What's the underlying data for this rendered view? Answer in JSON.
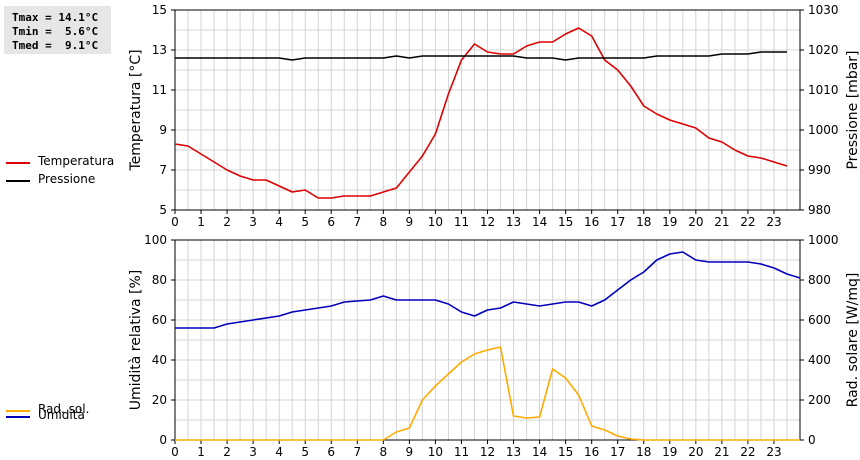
{
  "stats": {
    "tmax": "Tmax = 14.1°C",
    "tmin": "Tmin =  5.6°C",
    "tmed": "Tmed =  9.1°C"
  },
  "legend_top": [
    {
      "label": "Temperatura",
      "color": "#dd0000"
    },
    {
      "label": "Pressione",
      "color": "#000000"
    }
  ],
  "legend_bottom": [
    {
      "label": "Umidità",
      "color": "#0000bb"
    },
    {
      "label": "Rad. sol.",
      "color": "#ffaa00"
    }
  ],
  "chart_data": [
    {
      "type": "line",
      "ylabel": "Temperatura [°C]",
      "y2label": "Pressione [mbar]",
      "xlim": [
        0,
        24
      ],
      "x_ticks": [
        "0",
        "1",
        "2",
        "3",
        "4",
        "5",
        "6",
        "7",
        "8",
        "9",
        "10",
        "11",
        "12",
        "13",
        "14",
        "15",
        "16",
        "17",
        "18",
        "19",
        "20",
        "21",
        "22",
        "23"
      ],
      "ylim": [
        5,
        15
      ],
      "y_ticks": [
        "5",
        "7",
        "9",
        "11",
        "13",
        "15"
      ],
      "y2lim": [
        980,
        1030
      ],
      "y2_ticks": [
        "980",
        "990",
        "1000",
        "1010",
        "1020",
        "1030"
      ],
      "grid": true,
      "series": [
        {
          "name": "Temperatura",
          "axis": "left",
          "color": "#dd0000",
          "points": [
            [
              0,
              8.3
            ],
            [
              0.5,
              8.2
            ],
            [
              1,
              7.8
            ],
            [
              1.5,
              7.4
            ],
            [
              2,
              7.0
            ],
            [
              2.5,
              6.7
            ],
            [
              3,
              6.5
            ],
            [
              3.5,
              6.5
            ],
            [
              4,
              6.2
            ],
            [
              4.5,
              5.9
            ],
            [
              5,
              6.0
            ],
            [
              5.5,
              5.6
            ],
            [
              6,
              5.6
            ],
            [
              6.5,
              5.7
            ],
            [
              7,
              5.7
            ],
            [
              7.5,
              5.7
            ],
            [
              8,
              5.9
            ],
            [
              8.5,
              6.1
            ],
            [
              9,
              6.9
            ],
            [
              9.5,
              7.7
            ],
            [
              10,
              8.8
            ],
            [
              10.5,
              10.8
            ],
            [
              11,
              12.5
            ],
            [
              11.5,
              13.3
            ],
            [
              12,
              12.9
            ],
            [
              12.5,
              12.8
            ],
            [
              13,
              12.8
            ],
            [
              13.5,
              13.2
            ],
            [
              14,
              13.4
            ],
            [
              14.5,
              13.4
            ],
            [
              15,
              13.8
            ],
            [
              15.5,
              14.1
            ],
            [
              16,
              13.7
            ],
            [
              16.5,
              12.5
            ],
            [
              17,
              12.0
            ],
            [
              17.5,
              11.2
            ],
            [
              18,
              10.2
            ],
            [
              18.5,
              9.8
            ],
            [
              19,
              9.5
            ],
            [
              19.5,
              9.3
            ],
            [
              20,
              9.1
            ],
            [
              20.5,
              8.6
            ],
            [
              21,
              8.4
            ],
            [
              21.5,
              8.0
            ],
            [
              22,
              7.7
            ],
            [
              22.5,
              7.6
            ],
            [
              23,
              7.4
            ],
            [
              23.5,
              7.2
            ]
          ]
        },
        {
          "name": "Pressione",
          "axis": "right",
          "color": "#000000",
          "points": [
            [
              0,
              1018
            ],
            [
              4,
              1018
            ],
            [
              4.5,
              1017.5
            ],
            [
              5,
              1018
            ],
            [
              8,
              1018
            ],
            [
              8.5,
              1018.5
            ],
            [
              9,
              1018
            ],
            [
              9.5,
              1018.5
            ],
            [
              13,
              1018.5
            ],
            [
              13.5,
              1018
            ],
            [
              14.5,
              1018
            ],
            [
              15,
              1017.5
            ],
            [
              15.5,
              1018
            ],
            [
              18,
              1018
            ],
            [
              18.5,
              1018.5
            ],
            [
              20.5,
              1018.5
            ],
            [
              21,
              1019
            ],
            [
              22,
              1019
            ],
            [
              22.5,
              1019.5
            ],
            [
              23.5,
              1019.5
            ]
          ]
        }
      ]
    },
    {
      "type": "line",
      "ylabel": "Umidità relativa [%]",
      "y2label": "Rad. solare [W/mq]",
      "xlim": [
        0,
        24
      ],
      "x_ticks": [
        "0",
        "1",
        "2",
        "3",
        "4",
        "5",
        "6",
        "7",
        "8",
        "9",
        "10",
        "11",
        "12",
        "13",
        "14",
        "15",
        "16",
        "17",
        "18",
        "19",
        "20",
        "21",
        "22",
        "23"
      ],
      "ylim": [
        0,
        100
      ],
      "y_ticks": [
        "0",
        "20",
        "40",
        "60",
        "80",
        "100"
      ],
      "y2lim": [
        0,
        1000
      ],
      "y2_ticks": [
        "0",
        "200",
        "400",
        "600",
        "800",
        "1000"
      ],
      "grid": true,
      "series": [
        {
          "name": "Umidità",
          "axis": "left",
          "color": "#0000bb",
          "points": [
            [
              0,
              56
            ],
            [
              1.5,
              56
            ],
            [
              2,
              58
            ],
            [
              3,
              60
            ],
            [
              4,
              62
            ],
            [
              4.5,
              64
            ],
            [
              5,
              65
            ],
            [
              6,
              67
            ],
            [
              6.5,
              69
            ],
            [
              7.5,
              70
            ],
            [
              8,
              72
            ],
            [
              8.5,
              70
            ],
            [
              10,
              70
            ],
            [
              10.5,
              68
            ],
            [
              11,
              64
            ],
            [
              11.5,
              62
            ],
            [
              12,
              65
            ],
            [
              12.5,
              66
            ],
            [
              13,
              69
            ],
            [
              13.5,
              68
            ],
            [
              14,
              67
            ],
            [
              14.5,
              68
            ],
            [
              15,
              69
            ],
            [
              15.5,
              69
            ],
            [
              16,
              67
            ],
            [
              16.5,
              70
            ],
            [
              17,
              75
            ],
            [
              17.5,
              80
            ],
            [
              18,
              84
            ],
            [
              18.5,
              90
            ],
            [
              19,
              93
            ],
            [
              19.5,
              94
            ],
            [
              20,
              90
            ],
            [
              20.5,
              89
            ],
            [
              22,
              89
            ],
            [
              22.5,
              88
            ],
            [
              23,
              86
            ],
            [
              23.5,
              83
            ],
            [
              24,
              81
            ]
          ]
        },
        {
          "name": "Rad. sol.",
          "axis": "right",
          "color": "#ffaa00",
          "points": [
            [
              0,
              0
            ],
            [
              8,
              0
            ],
            [
              8.5,
              40
            ],
            [
              9,
              60
            ],
            [
              9.5,
              200
            ],
            [
              10,
              270
            ],
            [
              10.5,
              330
            ],
            [
              11,
              390
            ],
            [
              11.5,
              430
            ],
            [
              12,
              450
            ],
            [
              12.5,
              465
            ],
            [
              13,
              120
            ],
            [
              13.5,
              110
            ],
            [
              14,
              115
            ],
            [
              14.5,
              355
            ],
            [
              15,
              310
            ],
            [
              15.5,
              225
            ],
            [
              16,
              70
            ],
            [
              16.5,
              50
            ],
            [
              17,
              20
            ],
            [
              17.5,
              5
            ],
            [
              18,
              0
            ],
            [
              24,
              0
            ]
          ]
        }
      ]
    }
  ]
}
